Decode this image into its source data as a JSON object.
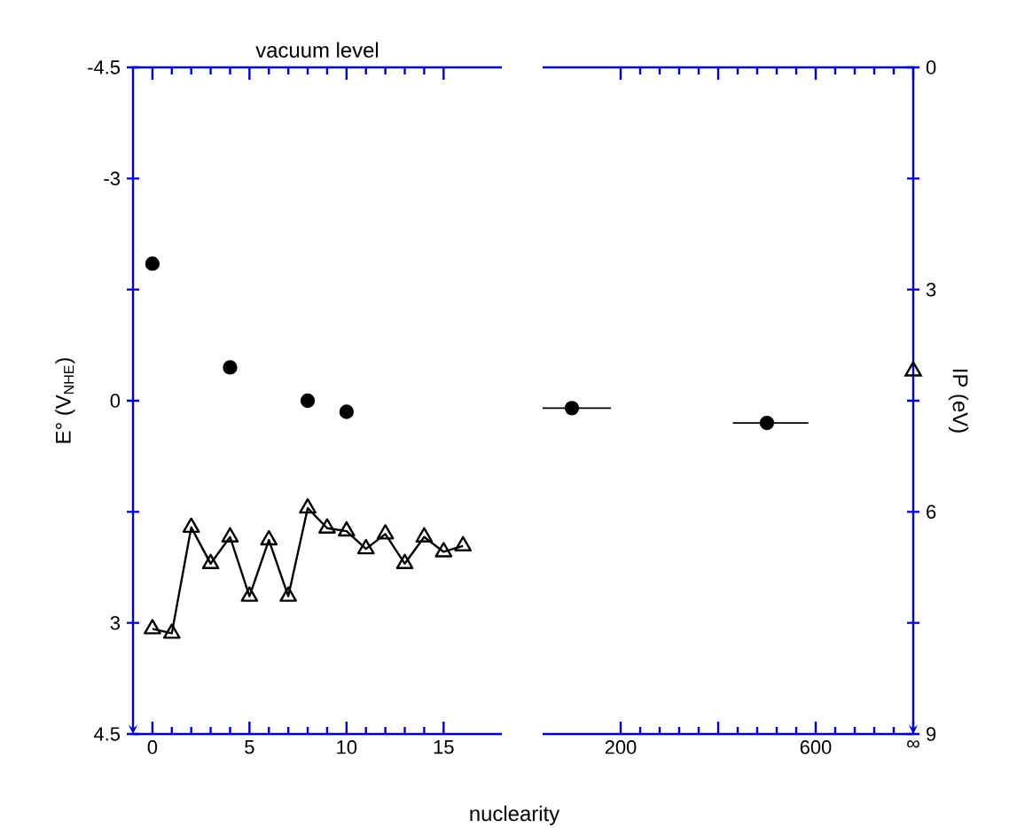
{
  "chart_data": [
    {
      "type": "scatter",
      "title": "vacuum level",
      "xlabel": "nuclearity",
      "ylabel": "E° (V$_{NHE}$)",
      "xlim": [
        -1,
        18
      ],
      "ylim": [
        4.5,
        -4.5
      ],
      "xticks": [
        0,
        5,
        10,
        15
      ],
      "yticks": [
        -4.5,
        -3,
        {
          "value": -1.5,
          "label": null
        },
        0,
        {
          "value": 1.5,
          "label": null
        },
        3,
        4.5
      ],
      "series": [
        {
          "marker": "circle",
          "color": "#000000",
          "x": [
            0,
            4,
            8,
            10
          ],
          "values": [
            -1.85,
            -0.45,
            0,
            0.15
          ]
        },
        {
          "type": "line",
          "marker": "triangle",
          "color": "#000000",
          "x": [
            0,
            1,
            2,
            3,
            4,
            5,
            6,
            7,
            8,
            9,
            10,
            11,
            12,
            13,
            14,
            15,
            16
          ],
          "values": [
            3.08,
            3.14,
            1.71,
            2.2,
            1.84,
            2.64,
            1.88,
            2.64,
            1.45,
            1.72,
            1.76,
            2.0,
            1.8,
            2.2,
            1.84,
            2.04,
            1.96
          ]
        }
      ]
    },
    {
      "type": "scatter",
      "y2label": "IP (eV)",
      "xlim": [
        40,
        800
      ],
      "xticks": [
        200,
        {
          "value": 400,
          "label": null
        },
        600,
        {
          "value": 800,
          "label": "∞"
        }
      ],
      "y2lim": [
        9,
        0
      ],
      "y2ticks": [
        0,
        {
          "value": 1.5,
          "label": null
        },
        3,
        {
          "value": 4.5,
          "label": null
        },
        6,
        {
          "value": 7.5,
          "label": null
        },
        9
      ],
      "series": [
        {
          "marker": "circle",
          "axis": "y2",
          "color": "#000000",
          "x": [
            100,
            500
          ],
          "values": [
            4.6,
            4.8
          ],
          "xerrors": [
            [
              40,
              180
            ],
            [
              430,
              585
            ]
          ]
        },
        {
          "marker": "triangle",
          "axis": "y2",
          "color": "#000000",
          "x": [
            800
          ],
          "values": [
            4.1
          ]
        }
      ]
    }
  ]
}
